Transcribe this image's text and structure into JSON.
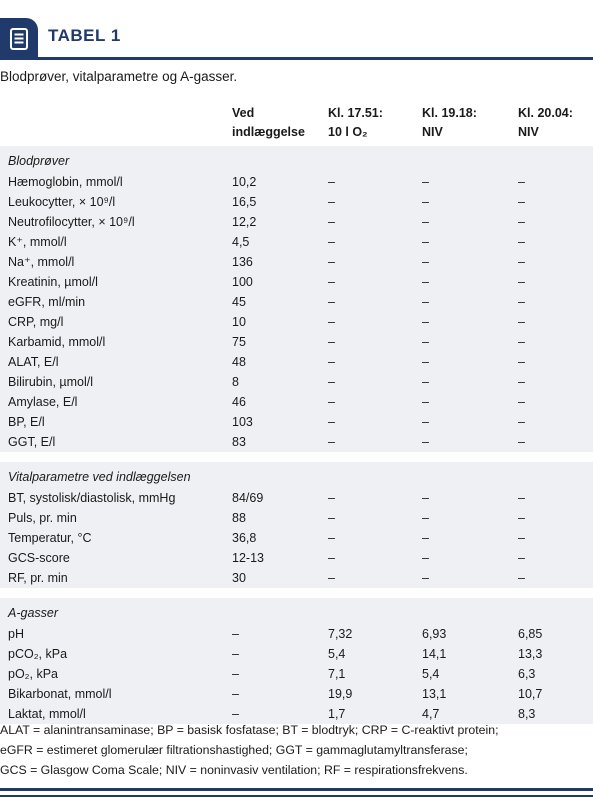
{
  "header": {
    "title": "TABEL 1",
    "icon": "document-list-icon"
  },
  "subtitle": "Blodprøver, vitalparametre og A-gasser.",
  "columns": [
    {
      "line1": "",
      "line2": ""
    },
    {
      "line1": "Ved",
      "line2": "indlæggelse"
    },
    {
      "line1": "Kl. 17.51:",
      "line2": "10 l O₂"
    },
    {
      "line1": "Kl. 19.18:",
      "line2": "NIV"
    },
    {
      "line1": "Kl. 20.04:",
      "line2": "NIV"
    }
  ],
  "sections": [
    {
      "title": "Blodprøver",
      "rows": [
        [
          "Hæmoglobin, mmol/l",
          "10,2",
          "–",
          "–",
          "–"
        ],
        [
          "Leukocytter, × 10⁹/l",
          "16,5",
          "–",
          "–",
          "–"
        ],
        [
          "Neutrofilocytter, × 10⁹/l",
          "12,2",
          "–",
          "–",
          "–"
        ],
        [
          "K⁺, mmol/l",
          "4,5",
          "–",
          "–",
          "–"
        ],
        [
          "Na⁺, mmol/l",
          "136",
          "–",
          "–",
          "–"
        ],
        [
          "Kreatinin, µmol/l",
          "100",
          "–",
          "–",
          "–"
        ],
        [
          "eGFR, ml/min",
          "45",
          "–",
          "–",
          "–"
        ],
        [
          "CRP, mg/l",
          "10",
          "–",
          "–",
          "–"
        ],
        [
          "Karbamid, mmol/l",
          "75",
          "–",
          "–",
          "–"
        ],
        [
          "ALAT, E/l",
          "48",
          "–",
          "–",
          "–"
        ],
        [
          "Bilirubin, µmol/l",
          "8",
          "–",
          "–",
          "–"
        ],
        [
          "Amylase, E/l",
          "46",
          "–",
          "–",
          "–"
        ],
        [
          "BP, E/l",
          "103",
          "–",
          "–",
          "–"
        ],
        [
          "GGT, E/l",
          "83",
          "–",
          "–",
          "–"
        ]
      ]
    },
    {
      "title": "Vitalparametre ved indlæggelsen",
      "rows": [
        [
          "BT, systolisk/diastolisk, mmHg",
          "84/69",
          "–",
          "–",
          "–"
        ],
        [
          "Puls, pr. min",
          "88",
          "–",
          "–",
          "–"
        ],
        [
          "Temperatur, °C",
          "36,8",
          "–",
          "–",
          "–"
        ],
        [
          "GCS-score",
          "12-13",
          "–",
          "–",
          "–"
        ],
        [
          "RF, pr. min",
          "30",
          "–",
          "–",
          "–"
        ]
      ]
    },
    {
      "title": "A-gasser",
      "rows": [
        [
          "pH",
          "–",
          "7,32",
          "6,93",
          "6,85"
        ],
        [
          "pCO₂, kPa",
          "–",
          "5,4",
          "14,1",
          "13,3"
        ],
        [
          "pO₂, kPa",
          "–",
          "7,1",
          "5,4",
          "6,3"
        ],
        [
          "Bikarbonat, mmol/l",
          "–",
          "19,9",
          "13,1",
          "10,7"
        ],
        [
          "Laktat, mmol/l",
          "–",
          "1,7",
          "4,7",
          "8,3"
        ]
      ]
    }
  ],
  "footnotes": [
    "ALAT = alanintransaminase; BP = basisk fosfatase; BT = blodtryk; CRP = C-reaktivt protein;",
    "eGFR = estimeret glomerulær filtrationshastighed; GGT = gammaglutamyltransferase;",
    "GCS = Glasgow Coma Scale; NIV = noninvasiv ventilation; RF = respirationsfrekvens."
  ],
  "colors": {
    "accent": "#1f3a6b",
    "band": "#eef0f3"
  }
}
